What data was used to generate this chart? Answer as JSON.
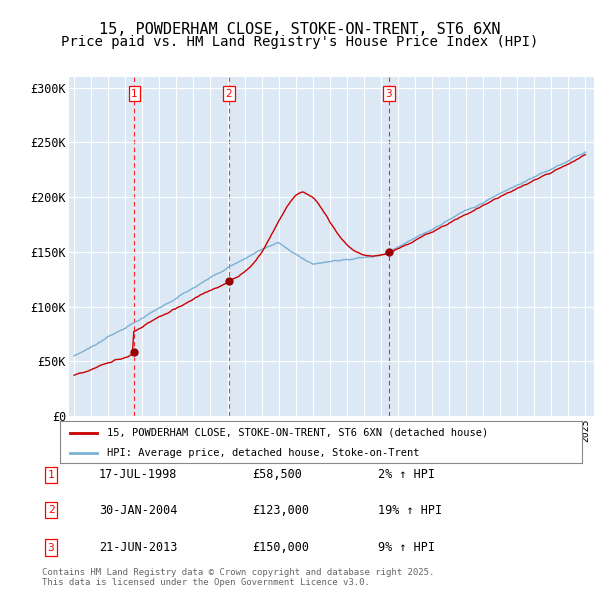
{
  "title": "15, POWDERHAM CLOSE, STOKE-ON-TRENT, ST6 6XN",
  "subtitle": "Price paid vs. HM Land Registry's House Price Index (HPI)",
  "ylim": [
    0,
    310000
  ],
  "yticks": [
    0,
    50000,
    100000,
    150000,
    200000,
    250000,
    300000
  ],
  "ytick_labels": [
    "£0",
    "£50K",
    "£100K",
    "£150K",
    "£200K",
    "£250K",
    "£300K"
  ],
  "legend_entries": [
    "15, POWDERHAM CLOSE, STOKE-ON-TRENT, ST6 6XN (detached house)",
    "HPI: Average price, detached house, Stoke-on-Trent"
  ],
  "legend_colors": [
    "#cc0000",
    "#7bafd4"
  ],
  "sale_dates_str": [
    "17-JUL-1998",
    "30-JAN-2004",
    "21-JUN-2013"
  ],
  "sale_years_float": [
    1998.54,
    2004.08,
    2013.46
  ],
  "sale_prices": [
    58500,
    123000,
    150000
  ],
  "sale_hpi_pct": [
    "2%",
    "19%",
    "9%"
  ],
  "footer_text": "Contains HM Land Registry data © Crown copyright and database right 2025.\nThis data is licensed under the Open Government Licence v3.0.",
  "plot_bg_color": "#dce9f5",
  "grid_color": "#ffffff",
  "title_fontsize": 11,
  "subtitle_fontsize": 10,
  "table_rows": [
    [
      "1",
      "17-JUL-1998",
      "£58,500",
      "2% ↑ HPI"
    ],
    [
      "2",
      "30-JAN-2004",
      "£123,000",
      "19% ↑ HPI"
    ],
    [
      "3",
      "21-JUN-2013",
      "£150,000",
      "9% ↑ HPI"
    ]
  ]
}
